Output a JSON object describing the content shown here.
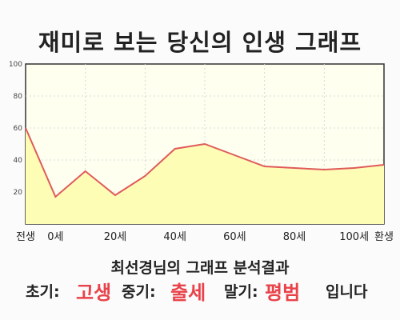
{
  "title": "재미로 보는 당신의 인생 그래프",
  "chart_data": {
    "type": "area",
    "x": [
      0,
      1,
      2,
      3,
      4,
      5,
      6,
      7,
      8,
      9,
      10,
      11,
      12
    ],
    "y": [
      60,
      17,
      33,
      18,
      30,
      47,
      50,
      43,
      36,
      35,
      34,
      35,
      37
    ],
    "xtick_labels": [
      "전생",
      "0세",
      "20세",
      "40세",
      "60세",
      "80세",
      "100세",
      "환생"
    ],
    "ylim": [
      0,
      100
    ],
    "yticks": [
      20,
      40,
      60,
      80,
      100
    ],
    "grid": true,
    "line_color": "#e05a5a",
    "fill_color": "#fdfdb6",
    "plot_bg": "#fffff0"
  },
  "subtitle": "최선경님의 그래프 분석결과",
  "summary": {
    "early_label": "초기:",
    "early_value": "고생",
    "mid_label": "중기:",
    "mid_value": "출세",
    "late_label": "말기:",
    "late_value": "평범",
    "ending": "입니다"
  },
  "colors": {
    "highlight": "#e8434a"
  }
}
